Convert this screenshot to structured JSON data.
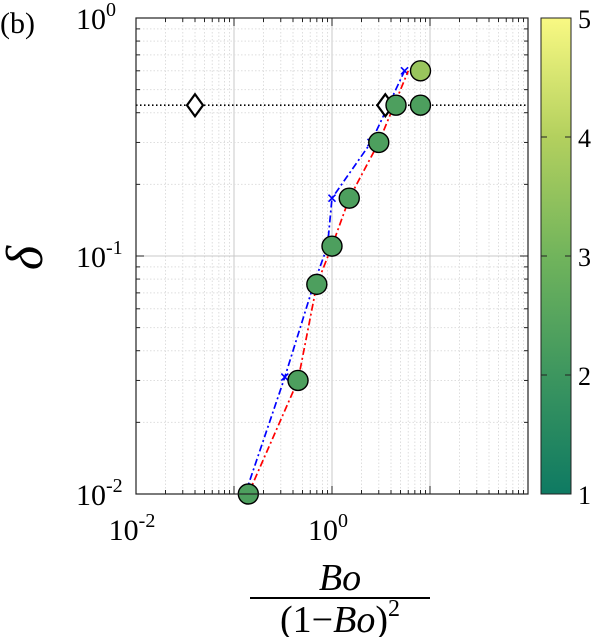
{
  "panel_label": "(b)",
  "chart_data": {
    "type": "scatter",
    "x_scale": "log",
    "y_scale": "log",
    "xlim": [
      0.01,
      100
    ],
    "ylim": [
      0.01,
      1
    ],
    "grid": true,
    "ylabel": "δ",
    "xlabel": {
      "numerator": "Bo",
      "denominator_prefix": "(1−",
      "denominator_var": "Bo",
      "denominator_suffix": ")",
      "denominator_power": "2"
    },
    "x_ticks": [
      {
        "value": 0.01,
        "base": "10",
        "exp": "-2"
      },
      {
        "value": 1,
        "base": "10",
        "exp": "0"
      }
    ],
    "y_ticks": [
      {
        "value": 0.01,
        "base": "10",
        "exp": "-2"
      },
      {
        "value": 0.1,
        "base": "10",
        "exp": "-1"
      },
      {
        "value": 1,
        "base": "10",
        "exp": "0"
      }
    ],
    "reference_line": {
      "y": 0.43,
      "style": "dotted",
      "color": "#000000"
    },
    "diamond_markers": [
      {
        "x": 0.04,
        "y": 0.43
      },
      {
        "x": 3.5,
        "y": 0.43
      }
    ],
    "circle_points": [
      {
        "x": 0.14,
        "y": 0.01,
        "c": 2.3
      },
      {
        "x": 0.45,
        "y": 0.03,
        "c": 2.3
      },
      {
        "x": 0.7,
        "y": 0.076,
        "c": 2.3
      },
      {
        "x": 1.0,
        "y": 0.11,
        "c": 2.3
      },
      {
        "x": 1.5,
        "y": 0.175,
        "c": 2.3
      },
      {
        "x": 3.0,
        "y": 0.3,
        "c": 2.3
      },
      {
        "x": 4.5,
        "y": 0.43,
        "c": 2.3
      },
      {
        "x": 8.0,
        "y": 0.43,
        "c": 2.3
      },
      {
        "x": 8.0,
        "y": 0.6,
        "c": 3.6
      }
    ],
    "series": [
      {
        "style": "dash-dot",
        "color": "#0000ff",
        "marker": "x",
        "points": [
          [
            0.13,
            0.01
          ],
          [
            0.33,
            0.031
          ],
          [
            0.65,
            0.076
          ],
          [
            0.9,
            0.11
          ],
          [
            1.0,
            0.175
          ],
          [
            2.5,
            0.3
          ],
          [
            5.5,
            0.6
          ]
        ]
      },
      {
        "style": "dash-dot",
        "color": "#ff0000",
        "marker": "none",
        "points": [
          [
            0.14,
            0.01
          ],
          [
            0.45,
            0.03
          ],
          [
            0.7,
            0.076
          ],
          [
            1.0,
            0.11
          ],
          [
            1.5,
            0.175
          ],
          [
            3.0,
            0.3
          ],
          [
            6.0,
            0.6
          ]
        ]
      }
    ],
    "colorbar": {
      "min": 1,
      "max": 5,
      "ticks": [
        "1",
        "2",
        "3",
        "4",
        "5"
      ],
      "colors": [
        "#0e7a62",
        "#3d965f",
        "#71b45c",
        "#b3d05e",
        "#f9f983"
      ]
    }
  }
}
